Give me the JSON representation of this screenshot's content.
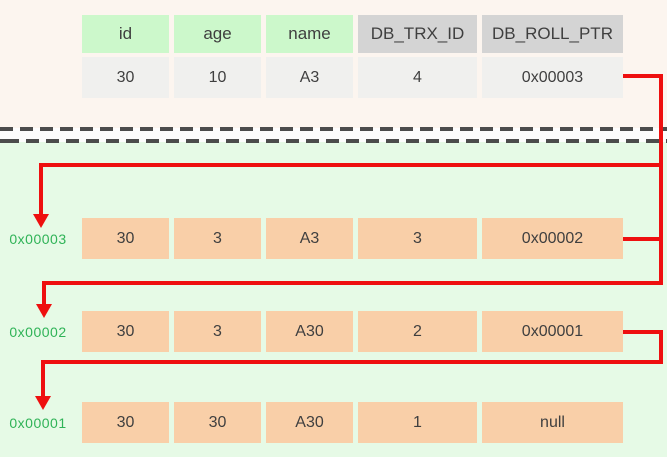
{
  "record_table": {
    "headers": [
      "id",
      "age",
      "name",
      "DB_TRX_ID",
      "DB_ROLL_PTR"
    ],
    "row": [
      "30",
      "10",
      "A3",
      "4",
      "0x00003"
    ]
  },
  "undo_versions": [
    {
      "roll_pointer": "0x00003",
      "cells": [
        "30",
        "3",
        "A3",
        "3",
        "0x00002"
      ]
    },
    {
      "roll_pointer": "0x00002",
      "cells": [
        "30",
        "3",
        "A30",
        "2",
        "0x00001"
      ]
    },
    {
      "roll_pointer": "0x00001",
      "cells": [
        "30",
        "30",
        "A30",
        "1",
        "null"
      ]
    }
  ],
  "colors": {
    "top_background": "#fcf5ef",
    "bottom_background": "#e6fae6",
    "visible_column_header": "#ccf8cb",
    "hidden_column_header": "#d4d4d4",
    "record_cell": "#f0f0ee",
    "version_cell": "#f9cfa8",
    "pointer_label_text": "#2fb357",
    "arrow_red": "#ee0f0f",
    "dashed_divider": "#4c4c4c",
    "text": "#3f3f3f"
  }
}
